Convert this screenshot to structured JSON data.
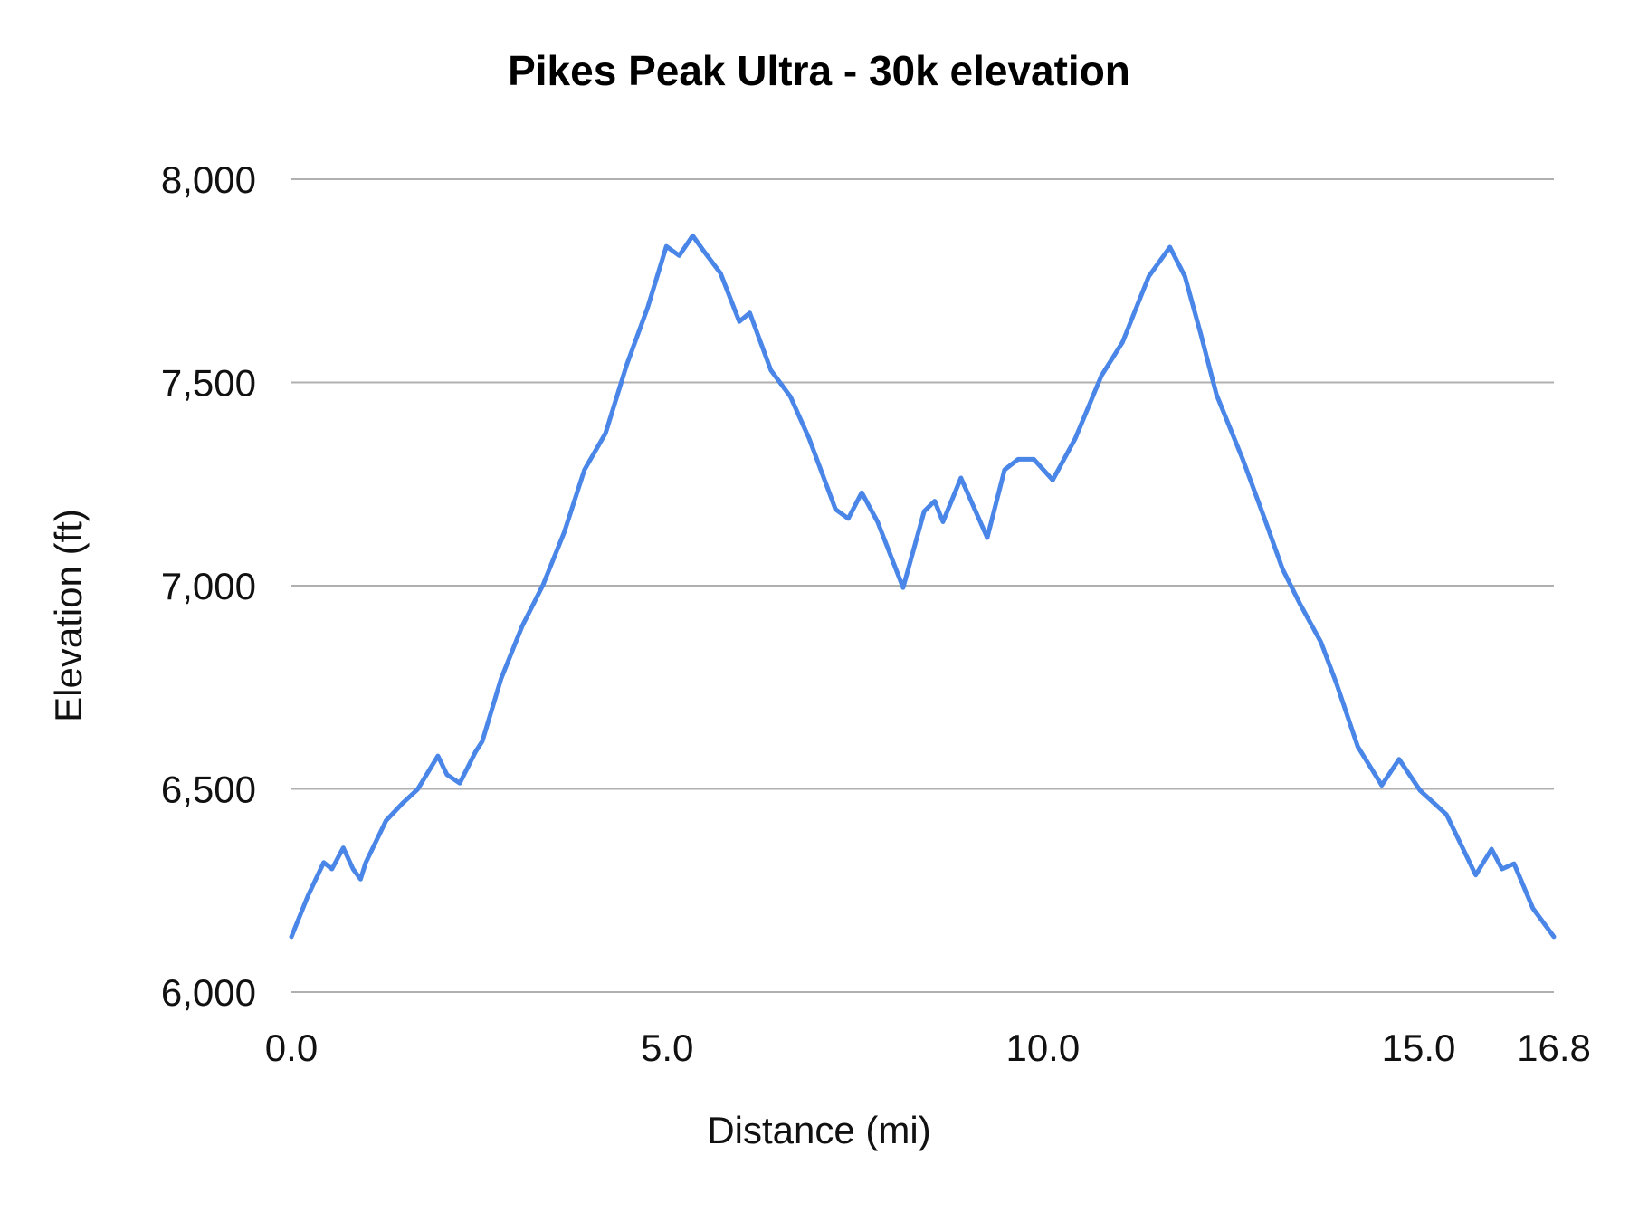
{
  "chart_data": {
    "type": "line",
    "title": "Pikes Peak Ultra - 30k elevation",
    "xlabel": "Distance (mi)",
    "ylabel": "Elevation (ft)",
    "xlim": [
      0,
      16.8
    ],
    "ylim": [
      6000,
      8000
    ],
    "x_ticks": [
      0,
      5,
      10,
      15,
      16.8
    ],
    "x_tick_labels": [
      "0.0",
      "5.0",
      "10.0",
      "15.0",
      "16.8"
    ],
    "y_ticks": [
      6000,
      6500,
      7000,
      7500,
      8000
    ],
    "y_tick_labels": [
      "6,000",
      "6,500",
      "7,000",
      "7,500",
      "8,000"
    ],
    "grid": "horizontal",
    "legend": "none",
    "line_color": "#4a86e8",
    "grid_color": "#b0b0b0",
    "series": [
      {
        "x": [
          0,
          0.22,
          0.43,
          0.54,
          0.69,
          0.82,
          0.92,
          0.99,
          1.26,
          1.47,
          1.68,
          1.95,
          2.07,
          2.24,
          2.45,
          2.54,
          2.79,
          3.07,
          3.21,
          3.35,
          3.63,
          3.9,
          4.18,
          4.46,
          4.74,
          4.99,
          5.16,
          5.34,
          5.5,
          5.71,
          5.96,
          6.1,
          6.38,
          6.64,
          6.89,
          7.24,
          7.41,
          7.59,
          7.8,
          8.14,
          8.42,
          8.56,
          8.67,
          8.91,
          9.26,
          9.49,
          9.67,
          9.88,
          10.13,
          10.43,
          10.78,
          11.06,
          11.41,
          11.69,
          11.89,
          12.1,
          12.31,
          12.66,
          12.94,
          13.19,
          13.42,
          13.7,
          13.91,
          14.19,
          14.51,
          14.74,
          15.02,
          15.37,
          15.76,
          15.97,
          16.11,
          16.27,
          16.52,
          16.8
        ],
        "y": [
          6136,
          6237,
          6319,
          6303,
          6355,
          6303,
          6278,
          6319,
          6422,
          6463,
          6499,
          6581,
          6535,
          6514,
          6591,
          6617,
          6771,
          6900,
          6951,
          7003,
          7131,
          7285,
          7375,
          7542,
          7684,
          7835,
          7812,
          7861,
          7820,
          7769,
          7650,
          7671,
          7530,
          7465,
          7362,
          7188,
          7165,
          7229,
          7157,
          6995,
          7183,
          7208,
          7157,
          7265,
          7118,
          7285,
          7311,
          7311,
          7260,
          7362,
          7517,
          7599,
          7761,
          7833,
          7761,
          7620,
          7470,
          7311,
          7170,
          7041,
          6956,
          6861,
          6758,
          6604,
          6509,
          6573,
          6496,
          6437,
          6288,
          6352,
          6303,
          6316,
          6206,
          6136
        ]
      }
    ]
  }
}
